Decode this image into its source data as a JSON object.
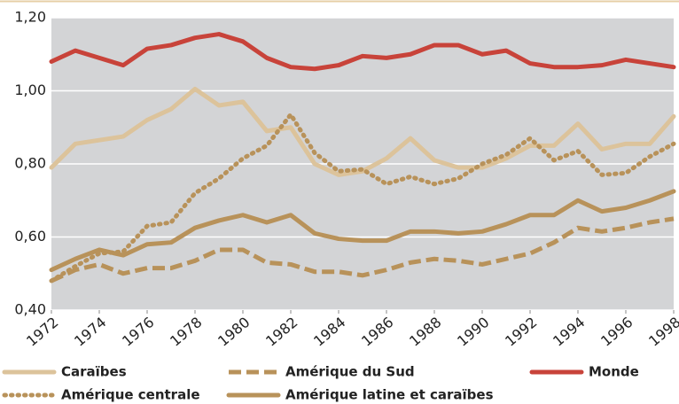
{
  "chart_data": {
    "type": "line",
    "x": [
      1972,
      1973,
      1974,
      1975,
      1976,
      1977,
      1978,
      1979,
      1980,
      1981,
      1982,
      1983,
      1984,
      1985,
      1986,
      1987,
      1988,
      1989,
      1990,
      1991,
      1992,
      1993,
      1994,
      1995,
      1996,
      1997,
      1998
    ],
    "xlim": [
      1972,
      1998
    ],
    "xticks": [
      1972,
      1974,
      1976,
      1978,
      1980,
      1982,
      1984,
      1986,
      1988,
      1990,
      1992,
      1994,
      1996,
      1998
    ],
    "ylim": [
      0.4,
      1.2
    ],
    "yticks": [
      {
        "value": 0.4,
        "label": "0,40"
      },
      {
        "value": 0.6,
        "label": "0,60"
      },
      {
        "value": 0.8,
        "label": "0,80"
      },
      {
        "value": 1.0,
        "label": "1,00"
      },
      {
        "value": 1.2,
        "label": "1,20"
      }
    ],
    "grid": true,
    "series": [
      {
        "name": "Caraïbes",
        "color": "#dcc39b",
        "dash": "solid",
        "values": [
          0.79,
          0.855,
          0.865,
          0.875,
          0.92,
          0.95,
          1.005,
          0.96,
          0.97,
          0.89,
          0.9,
          0.8,
          0.77,
          0.78,
          0.815,
          0.87,
          0.81,
          0.79,
          0.79,
          0.815,
          0.85,
          0.85,
          0.91,
          0.84,
          0.855,
          0.855,
          0.93
        ]
      },
      {
        "name": "Amérique du Sud",
        "color": "#b8925a",
        "dash": "dashed",
        "values": [
          0.48,
          0.51,
          0.525,
          0.5,
          0.515,
          0.515,
          0.535,
          0.565,
          0.565,
          0.53,
          0.525,
          0.505,
          0.505,
          0.495,
          0.51,
          0.53,
          0.54,
          0.535,
          0.525,
          0.54,
          0.555,
          0.585,
          0.625,
          0.615,
          0.625,
          0.64,
          0.65
        ]
      },
      {
        "name": "Monde",
        "color": "#c8433a",
        "dash": "solid",
        "values": [
          1.08,
          1.11,
          1.09,
          1.07,
          1.115,
          1.125,
          1.145,
          1.155,
          1.135,
          1.09,
          1.065,
          1.06,
          1.07,
          1.095,
          1.09,
          1.1,
          1.125,
          1.125,
          1.1,
          1.11,
          1.075,
          1.065,
          1.065,
          1.07,
          1.085,
          1.075,
          1.065
        ]
      },
      {
        "name": "Amérique centrale",
        "color": "#b8925a",
        "dash": "dotted",
        "values": [
          0.48,
          0.52,
          0.555,
          0.56,
          0.63,
          0.64,
          0.72,
          0.76,
          0.815,
          0.85,
          0.935,
          0.83,
          0.78,
          0.785,
          0.745,
          0.765,
          0.745,
          0.76,
          0.8,
          0.825,
          0.87,
          0.81,
          0.835,
          0.77,
          0.775,
          0.82,
          0.855
        ]
      },
      {
        "name": "Amérique latine et caraïbes",
        "color": "#b8925a",
        "dash": "solid",
        "values": [
          0.51,
          0.54,
          0.565,
          0.55,
          0.58,
          0.585,
          0.625,
          0.645,
          0.66,
          0.64,
          0.66,
          0.61,
          0.595,
          0.59,
          0.59,
          0.615,
          0.615,
          0.61,
          0.615,
          0.635,
          0.66,
          0.66,
          0.7,
          0.67,
          0.68,
          0.7,
          0.725
        ]
      }
    ]
  }
}
